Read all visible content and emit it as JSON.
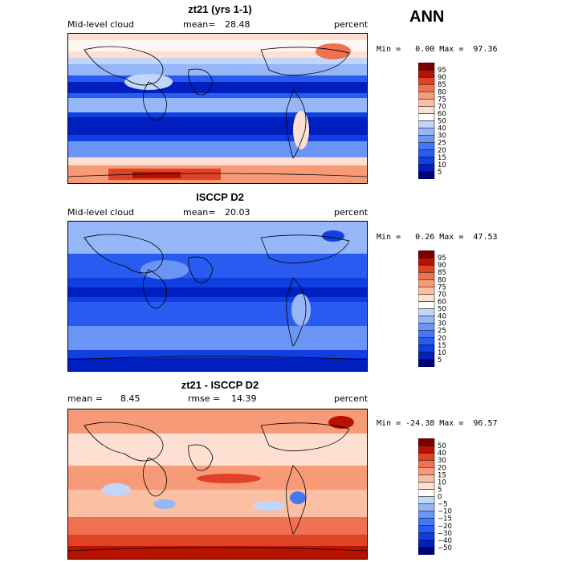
{
  "season": "ANN",
  "chart_data": [
    {
      "type": "heatmap",
      "title": "zt21 (yrs 1-1)",
      "variable": "Mid-level cloud",
      "mean_label": "mean=",
      "mean_value": "28.48",
      "units": "percent",
      "minmax": "Min =   0.00 Max =  97.36",
      "min": 0.0,
      "max": 97.36,
      "levels": [
        5,
        10,
        15,
        20,
        25,
        30,
        40,
        50,
        60,
        70,
        75,
        80,
        85,
        90,
        95
      ],
      "level_labels": [
        "95",
        "90",
        "85",
        "80",
        "75",
        "70",
        "60",
        "50",
        "40",
        "30",
        "25",
        "20",
        "15",
        "10",
        "5"
      ],
      "colors": [
        "#00007f",
        "#001fbe",
        "#0f3fe0",
        "#2a5bf0",
        "#4477f4",
        "#6a95f5",
        "#95b6f7",
        "#c2d6fb",
        "#ffffff",
        "#fde0d2",
        "#fbbfa4",
        "#f79a78",
        "#f07152",
        "#e04226",
        "#b81300",
        "#7a0000"
      ]
    },
    {
      "type": "heatmap",
      "title": "ISCCP D2",
      "variable": "Mid-level cloud",
      "mean_label": "mean=",
      "mean_value": "20.03",
      "units": "percent",
      "minmax": "Min =   0.26 Max =  47.53",
      "min": 0.26,
      "max": 47.53,
      "levels": [
        5,
        10,
        15,
        20,
        25,
        30,
        40,
        50,
        60,
        70,
        75,
        80,
        85,
        90,
        95
      ],
      "level_labels": [
        "95",
        "90",
        "85",
        "80",
        "75",
        "70",
        "60",
        "50",
        "40",
        "30",
        "25",
        "20",
        "15",
        "10",
        "5"
      ],
      "colors": [
        "#00007f",
        "#001fbe",
        "#0f3fe0",
        "#2a5bf0",
        "#4477f4",
        "#6a95f5",
        "#95b6f7",
        "#c2d6fb",
        "#ffffff",
        "#fde0d2",
        "#fbbfa4",
        "#f79a78",
        "#f07152",
        "#e04226",
        "#b81300",
        "#7a0000"
      ]
    },
    {
      "type": "heatmap",
      "title": "zt21 - ISCCP D2",
      "stat1_label": "mean =",
      "stat1_value": "8.45",
      "stat2_label": "rmse =",
      "stat2_value": "14.39",
      "units": "percent",
      "minmax": "Min = -24.38 Max =  96.57",
      "min": -24.38,
      "max": 96.57,
      "levels": [
        -50,
        -40,
        -30,
        -20,
        -15,
        -10,
        -5,
        0,
        5,
        10,
        15,
        20,
        30,
        40,
        50
      ],
      "level_labels": [
        "50",
        "40",
        "30",
        "20",
        "15",
        "10",
        "5",
        "0",
        "−5",
        "−10",
        "−15",
        "−20",
        "−30",
        "−40",
        "−50"
      ],
      "colors": [
        "#00007f",
        "#001fbe",
        "#0f3fe0",
        "#2a5bf0",
        "#4477f4",
        "#6a95f5",
        "#95b6f7",
        "#c2d6fb",
        "#ffffff",
        "#fde0d2",
        "#fbbfa4",
        "#f79a78",
        "#f07152",
        "#e04226",
        "#b81300",
        "#7a0000"
      ]
    }
  ]
}
